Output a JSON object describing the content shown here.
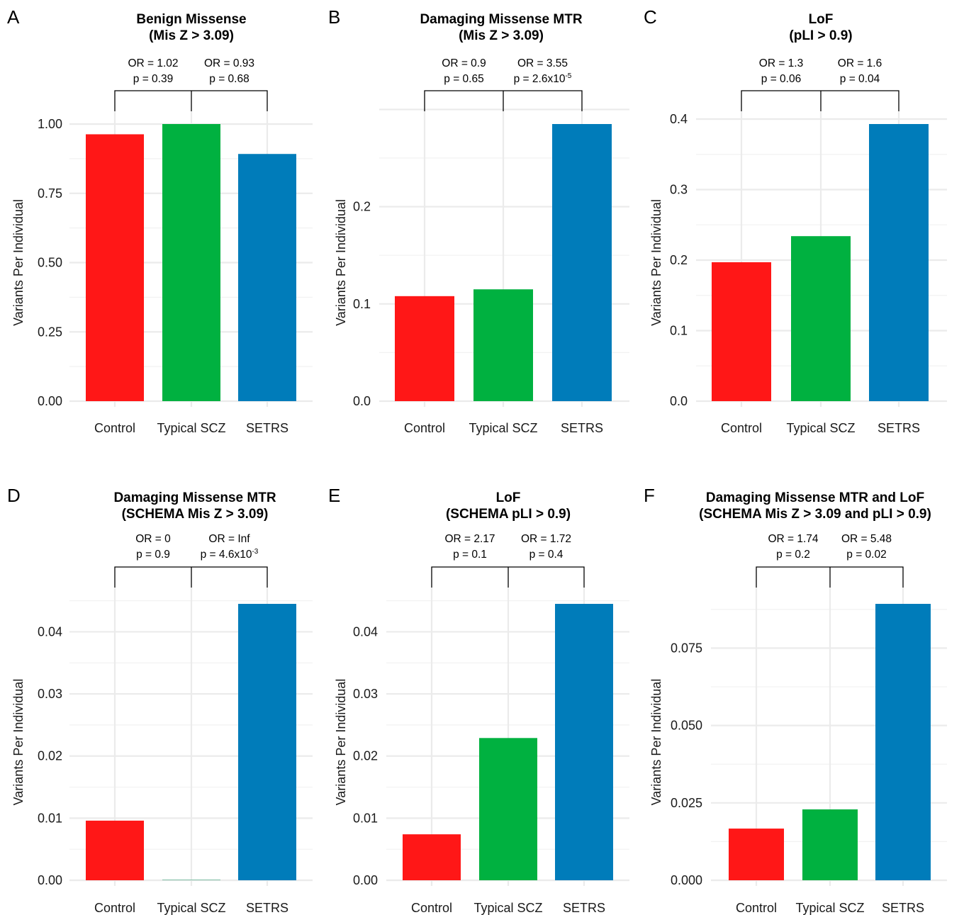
{
  "y_label": "Variants Per Individual",
  "colors": {
    "Control": "#FF1717",
    "Typical SCZ": "#00B140",
    "SETRS": "#007CBA"
  },
  "chart_data": [
    {
      "letter": "A",
      "type": "bar",
      "title": [
        "Benign Missense",
        "(Mis Z > 3.09)"
      ],
      "categories": [
        "Control",
        "Typical SCZ",
        "SETRS"
      ],
      "values": [
        0.963,
        1.0,
        0.892
      ],
      "ylim": [
        0,
        1.0
      ],
      "ticks": [
        "0.00",
        "0.25",
        "0.50",
        "0.75",
        "1.00"
      ],
      "tick_step": 0.25,
      "ylabel": "Variants Per Individual",
      "comparisons": [
        {
          "or": "OR = 1.02",
          "p": "p = 0.39"
        },
        {
          "or": "OR = 0.93",
          "p": "p = 0.68"
        }
      ]
    },
    {
      "letter": "B",
      "type": "bar",
      "title": [
        "Damaging Missense MTR",
        "(Mis Z > 3.09)"
      ],
      "categories": [
        "Control",
        "Typical SCZ",
        "SETRS"
      ],
      "values": [
        0.108,
        0.115,
        0.285
      ],
      "ylim": [
        0,
        0.285
      ],
      "ticks": [
        "0.0",
        "0.1",
        "0.2"
      ],
      "tick_step": 0.1,
      "ylabel": "Variants Per Individual",
      "comparisons": [
        {
          "or": "OR = 0.9",
          "p": "p = 0.65"
        },
        {
          "or": "OR = 3.55",
          "p": "p = 2.6x10",
          "p_sup": "-5"
        }
      ]
    },
    {
      "letter": "C",
      "type": "bar",
      "title": [
        "LoF",
        "(pLI > 0.9)"
      ],
      "categories": [
        "Control",
        "Typical SCZ",
        "SETRS"
      ],
      "values": [
        0.197,
        0.234,
        0.393
      ],
      "ylim": [
        0,
        0.393
      ],
      "ticks": [
        "0.0",
        "0.1",
        "0.2",
        "0.3",
        "0.4"
      ],
      "tick_step": 0.1,
      "ylabel": "Variants Per Individual",
      "comparisons": [
        {
          "or": "OR = 1.3",
          "p": "p = 0.06"
        },
        {
          "or": "OR = 1.6",
          "p": "p = 0.04"
        }
      ]
    },
    {
      "letter": "D",
      "type": "bar",
      "title": [
        "Damaging Missense MTR",
        "(SCHEMA Mis Z > 3.09)"
      ],
      "categories": [
        "Control",
        "Typical SCZ",
        "SETRS"
      ],
      "values": [
        0.0096,
        0.0,
        0.0445
      ],
      "ylim": [
        0,
        0.0445
      ],
      "ticks": [
        "0.00",
        "0.01",
        "0.02",
        "0.03",
        "0.04"
      ],
      "tick_step": 0.01,
      "ylabel": "Variants Per Individual",
      "comparisons": [
        {
          "or": "OR = 0",
          "p": "p = 0.9"
        },
        {
          "or": "OR = Inf",
          "p": "p = 4.6x10",
          "p_sup": "-3"
        }
      ]
    },
    {
      "letter": "E",
      "type": "bar",
      "title": [
        "LoF",
        "(SCHEMA pLI > 0.9)"
      ],
      "categories": [
        "Control",
        "Typical SCZ",
        "SETRS"
      ],
      "values": [
        0.0074,
        0.0229,
        0.0445
      ],
      "ylim": [
        0,
        0.0445
      ],
      "ticks": [
        "0.00",
        "0.01",
        "0.02",
        "0.03",
        "0.04"
      ],
      "tick_step": 0.01,
      "ylabel": "Variants Per Individual",
      "comparisons": [
        {
          "or": "OR = 2.17",
          "p": "p = 0.1"
        },
        {
          "or": "OR = 1.72",
          "p": "p = 0.4"
        }
      ]
    },
    {
      "letter": "F",
      "type": "bar",
      "title": [
        "Damaging Missense MTR and LoF",
        "(SCHEMA Mis Z > 3.09 and pLI > 0.9)"
      ],
      "categories": [
        "Control",
        "Typical SCZ",
        "SETRS"
      ],
      "values": [
        0.0167,
        0.0229,
        0.0893
      ],
      "ylim": [
        0,
        0.0893
      ],
      "ticks": [
        "0.000",
        "0.025",
        "0.050",
        "0.075"
      ],
      "tick_step": 0.025,
      "ylabel": "Variants Per Individual",
      "comparisons": [
        {
          "or": "OR = 1.74",
          "p": "p = 0.2"
        },
        {
          "or": "OR = 5.48",
          "p": "p = 0.02"
        }
      ]
    }
  ]
}
